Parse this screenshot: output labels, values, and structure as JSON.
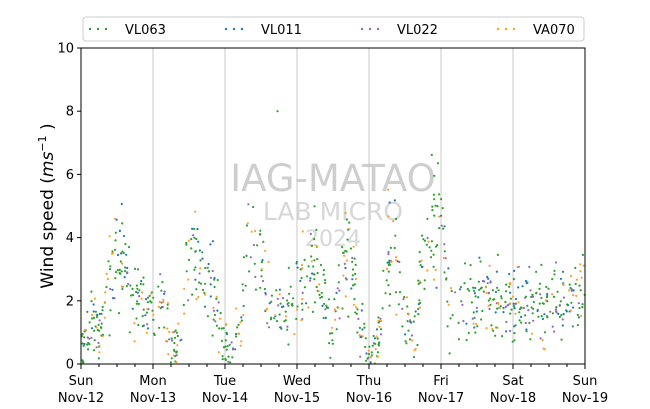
{
  "chart_data": {
    "type": "scatter",
    "title": "",
    "xlabel": "",
    "ylabel": "Wind speed (ms⁻¹ )",
    "ylim": [
      0,
      10
    ],
    "yticks": [
      0,
      2,
      4,
      6,
      8,
      10
    ],
    "xlim": [
      "2023-11-12 00:00",
      "2023-11-19 00:00"
    ],
    "xticks": [
      {
        "day": "Sun",
        "date": "Nov-12"
      },
      {
        "day": "Mon",
        "date": "Nov-13"
      },
      {
        "day": "Tue",
        "date": "Nov-14"
      },
      {
        "day": "Wed",
        "date": "Nov-15"
      },
      {
        "day": "Thu",
        "date": "Nov-16"
      },
      {
        "day": "Fri",
        "date": "Nov-17"
      },
      {
        "day": "Sat",
        "date": "Nov-18"
      },
      {
        "day": "Sun",
        "date": "Nov-19"
      }
    ],
    "grid": "vertical lines at day boundaries",
    "legend": "top, horizontal",
    "watermark": [
      "IAG-MATAO",
      "LAB MICRO",
      "2024"
    ],
    "series": [
      {
        "name": "VL063",
        "color": "#2ca02c",
        "marker": "dot"
      },
      {
        "name": "VL011",
        "color": "#1f77b4",
        "marker": "dot"
      },
      {
        "name": "VL022",
        "color": "#9467bd",
        "marker": "dot"
      },
      {
        "name": "VA070",
        "color": "#ff9f2a",
        "marker": "dot"
      }
    ],
    "profile": {
      "hours_from_start": [
        0,
        3,
        6,
        9,
        12,
        15,
        18,
        21,
        24,
        27,
        30,
        33,
        36,
        38,
        41,
        44,
        47,
        50,
        53,
        56,
        59,
        60,
        63,
        66,
        69,
        72,
        75,
        78,
        81,
        84,
        87,
        90,
        93,
        96,
        99,
        102,
        105,
        108,
        111,
        114,
        117,
        120,
        123,
        126,
        129,
        132,
        135,
        138,
        141,
        144,
        147,
        150,
        153,
        156,
        159,
        162,
        165,
        168
      ],
      "mean_wind_speed": [
        0.3,
        1.3,
        0.8,
        2.5,
        3.5,
        3.0,
        2.0,
        1.6,
        1.8,
        2.2,
        0.5,
        0.6,
        3.2,
        3.5,
        2.5,
        2.4,
        0.6,
        0.5,
        1.0,
        4.0,
        4.2,
        3.0,
        2.3,
        1.6,
        2.0,
        2.0,
        2.8,
        3.0,
        2.0,
        0.8,
        3.0,
        3.4,
        1.0,
        0.4,
        0.6,
        3.4,
        3.8,
        1.5,
        0.7,
        3.5,
        4.5,
        4.0,
        2.0,
        2.0,
        2.0,
        2.0,
        2.0,
        2.0,
        2.0,
        2.0,
        2.0,
        2.0,
        2.0,
        2.0,
        2.0,
        2.0,
        2.0,
        2.0
      ]
    },
    "peak_value": 8.0
  }
}
